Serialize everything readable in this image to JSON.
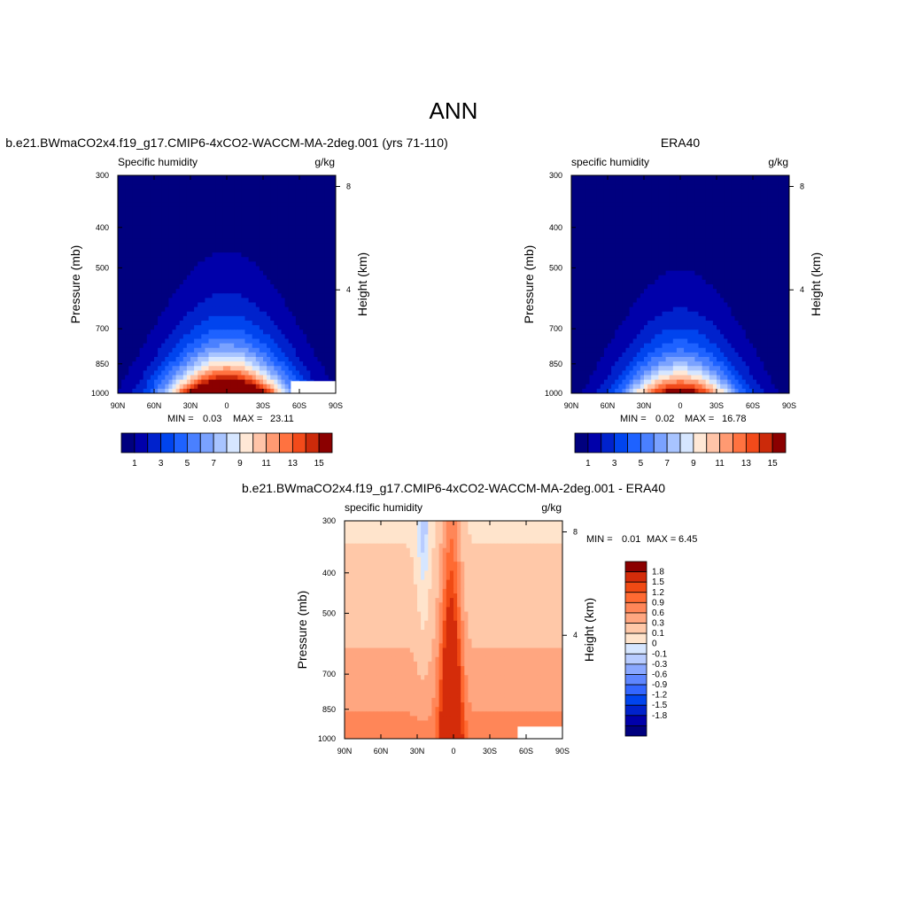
{
  "figure": {
    "title": "ANN",
    "colors": {
      "blue_to_red_15": [
        "#00007f",
        "#0000aa",
        "#0022cc",
        "#0044ee",
        "#1e62ff",
        "#4a80ff",
        "#7aa2ff",
        "#a8c4ff",
        "#d6e6ff",
        "#ffe8d6",
        "#ffc4a8",
        "#ff9a72",
        "#ff7240",
        "#f24a1a",
        "#cc2a0a",
        "#8b0000"
      ],
      "diff_palette": [
        "#00007f",
        "#0000aa",
        "#0022cc",
        "#0044ee",
        "#3366ff",
        "#5e86ff",
        "#8aa8ff",
        "#b8ccff",
        "#d6e6ff",
        "#ffe4cc",
        "#ffc8a8",
        "#ffa680",
        "#ff8658",
        "#ff6a32",
        "#f04a14",
        "#d42c0a",
        "#8b0000"
      ]
    }
  },
  "chart_data": [
    {
      "type": "heatmap",
      "title": "b.e21.BWmaCO2x4.f19_g17.CMIP6-4xCO2-WACCM-MA-2deg.001 (yrs 71-110)",
      "left_label": "Specific humidity",
      "right_label": "g/kg",
      "ylabel": "Pressure (mb)",
      "ylabel_right": "Height (km)",
      "x_ticks": [
        "90N",
        "60N",
        "30N",
        "0",
        "30S",
        "60S",
        "90S"
      ],
      "y_ticks": [
        "300",
        "400",
        "500",
        "700",
        "850",
        "1000"
      ],
      "y_ticks_right": [
        "8",
        "4"
      ],
      "min_label": "MIN =",
      "min_value": "0.03",
      "max_label": "MAX =",
      "max_value": "23.11",
      "colorbar_labels": [
        "1",
        "3",
        "5",
        "7",
        "9",
        "11",
        "13",
        "15"
      ],
      "field": {
        "peak": 23.11,
        "center_lat": 0,
        "half_width_deg": 30,
        "level_decay": 0.55
      }
    },
    {
      "type": "heatmap",
      "title": "ERA40",
      "left_label": "specific humidity",
      "right_label": "g/kg",
      "ylabel": "Pressure (mb)",
      "ylabel_right": "Height (km)",
      "x_ticks": [
        "90N",
        "60N",
        "30N",
        "0",
        "30S",
        "60S",
        "90S"
      ],
      "y_ticks": [
        "300",
        "400",
        "500",
        "700",
        "850",
        "1000"
      ],
      "y_ticks_right": [
        "8",
        "4"
      ],
      "min_label": "MIN =",
      "min_value": "0.02",
      "max_label": "MAX =",
      "max_value": "16.78",
      "colorbar_labels": [
        "1",
        "3",
        "5",
        "7",
        "9",
        "11",
        "13",
        "15"
      ],
      "field": {
        "peak": 16.78,
        "center_lat": 0,
        "half_width_deg": 28,
        "level_decay": 0.55
      }
    },
    {
      "type": "heatmap",
      "title": "b.e21.BWmaCO2x4.f19_g17.CMIP6-4xCO2-WACCM-MA-2deg.001 - ERA40",
      "left_label": "specific humidity",
      "right_label": "g/kg",
      "ylabel": "Pressure (mb)",
      "ylabel_right": "Height (km)",
      "x_ticks": [
        "90N",
        "60N",
        "30N",
        "0",
        "30S",
        "60S",
        "90S"
      ],
      "y_ticks": [
        "300",
        "400",
        "500",
        "700",
        "850",
        "1000"
      ],
      "y_ticks_right": [
        "8",
        "4"
      ],
      "min_label": "MIN =",
      "min_value": "0.01",
      "max_label": "MAX =",
      "max_value": "6.45",
      "colorbar_labels": [
        "1.8",
        "1.5",
        "1.2",
        "0.9",
        "0.6",
        "0.3",
        "0.1",
        "0",
        "-0.1",
        "-0.3",
        "-0.6",
        "-0.9",
        "-1.2",
        "-1.5",
        "-1.8"
      ],
      "field": {
        "peak": 6.45,
        "center_lat": 2,
        "half_width_deg": 8
      }
    }
  ]
}
